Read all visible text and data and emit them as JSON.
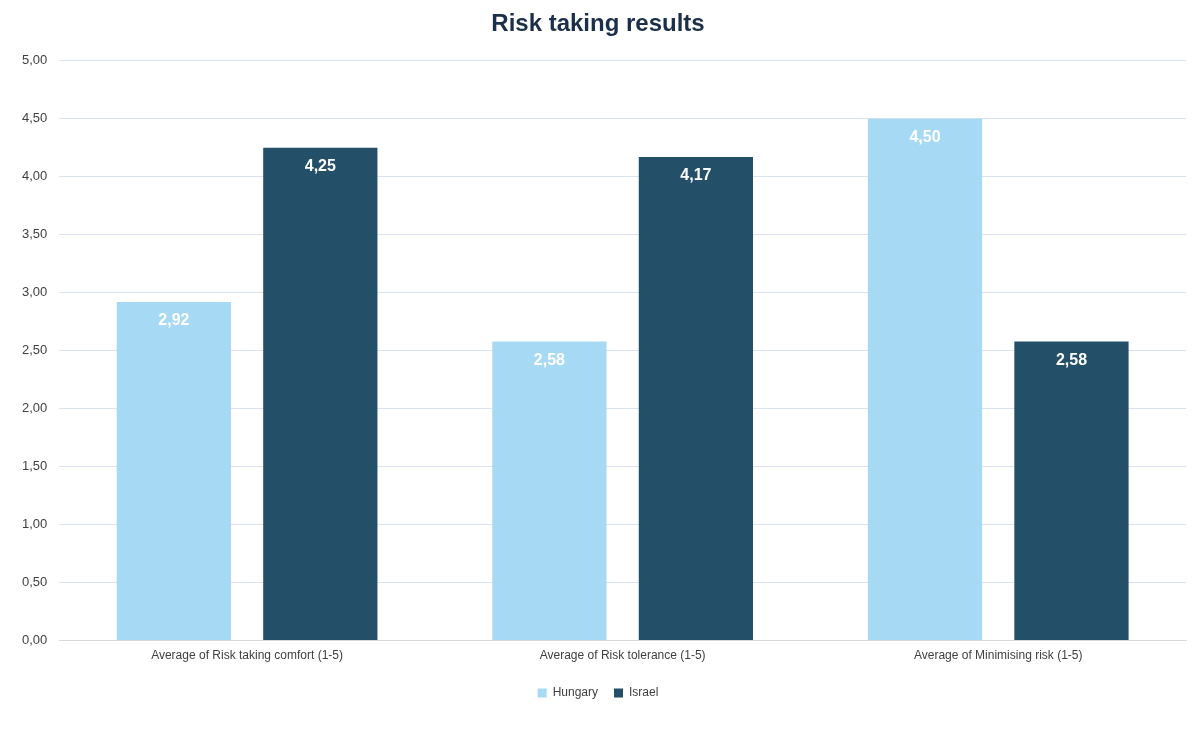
{
  "chart_data": {
    "type": "bar",
    "title": "Risk taking results",
    "categories": [
      "Average of Risk taking comfort (1-5)",
      "Average of Risk tolerance (1-5)",
      "Average of Minimising risk (1-5)"
    ],
    "series": [
      {
        "name": "Hungary",
        "color": "#a6d9f4",
        "values": [
          2.92,
          2.58,
          4.5
        ],
        "value_labels": [
          "2,92",
          "2,58",
          "4,50"
        ]
      },
      {
        "name": "Israel",
        "color": "#234f68",
        "values": [
          4.25,
          4.17,
          2.58
        ],
        "value_labels": [
          "4,25",
          "4,17",
          "2,58"
        ]
      }
    ],
    "ylim": [
      0,
      5
    ],
    "yticks": [
      {
        "value": 0,
        "label": "0,00"
      },
      {
        "value": 0.5,
        "label": "0,50"
      },
      {
        "value": 1,
        "label": "1,00"
      },
      {
        "value": 1.5,
        "label": "1,50"
      },
      {
        "value": 2,
        "label": "2,00"
      },
      {
        "value": 2.5,
        "label": "2,50"
      },
      {
        "value": 3,
        "label": "3,00"
      },
      {
        "value": 3.5,
        "label": "3,50"
      },
      {
        "value": 4,
        "label": "4,00"
      },
      {
        "value": 4.5,
        "label": "4,50"
      },
      {
        "value": 5,
        "label": "5,00"
      }
    ],
    "grid": "y",
    "legend": "bottom"
  }
}
